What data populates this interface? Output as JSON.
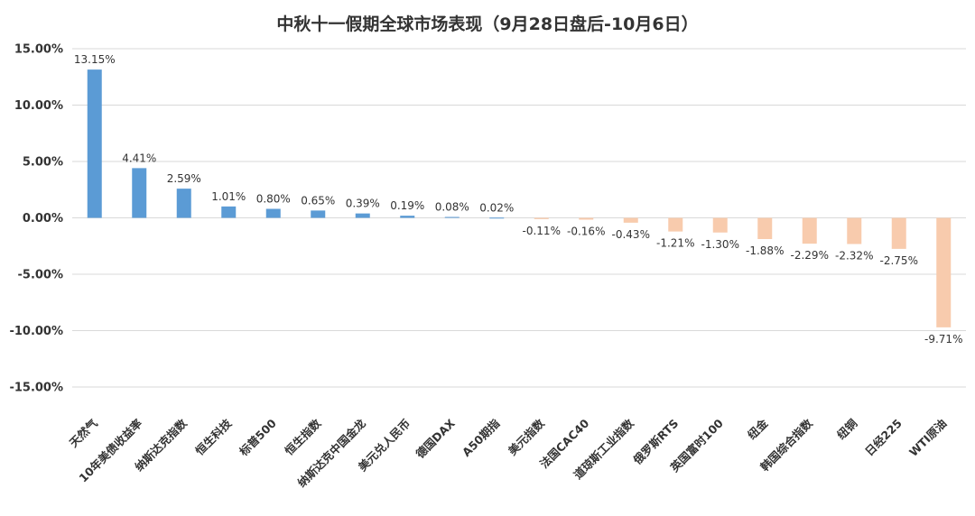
{
  "chart_data": {
    "type": "bar",
    "title": "中秋十一假期全球市场表现（9月28日盘后-10月6日）",
    "categories": [
      "天然气",
      "10年美债收益率",
      "纳斯达克指数",
      "恒生科技",
      "标普500",
      "恒生指数",
      "纳斯达克中国金龙",
      "美元兑人民币",
      "德国DAX",
      "A50期指",
      "美元指数",
      "法国CAC40",
      "道琼斯工业指数",
      "俄罗斯RTS",
      "英国富时100",
      "纽金",
      "韩国综合指数",
      "纽铜",
      "日经225",
      "WTI原油"
    ],
    "values": [
      13.15,
      4.41,
      2.59,
      1.01,
      0.8,
      0.65,
      0.39,
      0.19,
      0.08,
      0.02,
      -0.11,
      -0.16,
      -0.43,
      -1.21,
      -1.3,
      -1.88,
      -2.29,
      -2.32,
      -2.75,
      -9.71
    ],
    "data_labels": [
      "13.15%",
      "4.41%",
      "2.59%",
      "1.01%",
      "0.80%",
      "0.65%",
      "0.39%",
      "0.19%",
      "0.08%",
      "0.02%",
      "-0.11%",
      "-0.16%",
      "-0.43%",
      "-1.21%",
      "-1.30%",
      "-1.88%",
      "-2.29%",
      "-2.32%",
      "-2.75%",
      "-9.71%"
    ],
    "y_ticks": [
      15,
      10,
      5,
      0,
      -5,
      -10,
      -15
    ],
    "y_tick_labels": [
      "15.00%",
      "10.00%",
      "5.00%",
      "0.00%",
      "-5.00%",
      "-10.00%",
      "-15.00%"
    ],
    "ylim": [
      -15,
      15
    ],
    "grid": true,
    "legend": "none",
    "colors": {
      "positive": "#5b9bd5",
      "negative": "#f8cbad"
    }
  }
}
